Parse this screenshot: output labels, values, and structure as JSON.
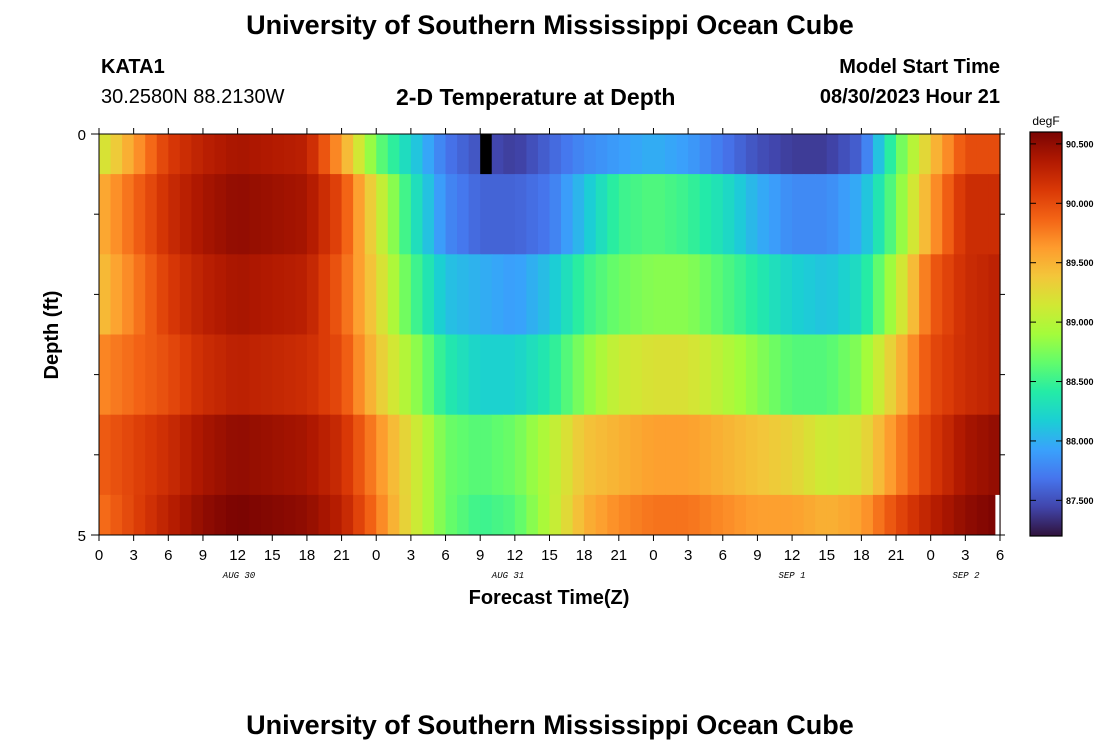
{
  "header": {
    "title": "University of Southern Mississippi Ocean Cube",
    "station_id": "KATA1",
    "station_coords": "30.2580N  88.2130W",
    "chart_title": "2-D Temperature at Depth",
    "model_start_label": "Model Start Time",
    "model_start_value": "08/30/2023 Hour 21"
  },
  "footer": {
    "title": "University of Southern Mississippi Ocean Cube"
  },
  "colors": {
    "colormap": [
      "#30123b",
      "#4145ab",
      "#4675ed",
      "#39a2fc",
      "#1bcfd4",
      "#24eca6",
      "#61fc6c",
      "#a4fc3b",
      "#d1e834",
      "#f3c63a",
      "#fe9b2d",
      "#f36315",
      "#d93806",
      "#b11901",
      "#7a0402"
    ]
  },
  "chart_data": {
    "type": "heatmap",
    "title": "2-D Temperature at Depth",
    "xlabel": "Forecast Time(Z)",
    "ylabel": "Depth (ft)",
    "y_ticks": [
      "0",
      "5"
    ],
    "y_range": [
      0,
      5
    ],
    "x_tick_labels": [
      "0",
      "3",
      "6",
      "9",
      "12",
      "15",
      "18",
      "21",
      "0",
      "3",
      "6",
      "9",
      "12",
      "15",
      "18",
      "21",
      "0",
      "3",
      "6",
      "9",
      "12",
      "15",
      "18",
      "21",
      "0",
      "3",
      "6"
    ],
    "date_labels": [
      "AUG 30",
      "AUG 31",
      "SEP 1",
      "SEP 2"
    ],
    "colorbar": {
      "unit": "degF",
      "min": 87.2,
      "max": 90.6,
      "tick_labels": [
        "90.500",
        "90.000",
        "89.500",
        "89.000",
        "88.500",
        "88.000",
        "87.500"
      ],
      "tick_values": [
        90.5,
        90.0,
        89.5,
        89.0,
        88.5,
        88.0,
        87.5
      ]
    },
    "layers": [
      "0-0.5 ft",
      "0.5-1.5 ft",
      "1.5-2.5 ft",
      "2.5-3.5 ft",
      "3.5-4.5 ft",
      "4.5-5 ft"
    ],
    "time_hours": [
      0,
      6,
      9,
      12,
      18,
      21,
      24,
      27,
      30,
      33,
      36,
      39,
      42,
      45,
      48,
      51,
      54,
      57,
      60,
      63,
      66,
      69,
      72,
      75,
      78
    ],
    "values": [
      [
        89.1,
        90.1,
        90.3,
        90.4,
        90.3,
        89.6,
        88.7,
        88.2,
        87.7,
        87.5,
        87.4,
        87.6,
        87.8,
        87.9,
        88.0,
        87.9,
        87.7,
        87.5,
        87.4,
        87.4,
        87.6,
        88.6,
        89.4,
        90.0,
        90.0
      ],
      [
        89.5,
        90.2,
        90.4,
        90.5,
        90.4,
        90.0,
        89.2,
        88.4,
        87.8,
        87.6,
        87.6,
        87.7,
        88.1,
        88.5,
        88.6,
        88.5,
        88.3,
        88.0,
        87.8,
        87.8,
        88.0,
        88.7,
        89.6,
        90.2,
        90.2
      ],
      [
        89.4,
        90.1,
        90.3,
        90.4,
        90.3,
        89.9,
        89.3,
        88.6,
        88.1,
        88.0,
        87.9,
        88.1,
        88.5,
        88.7,
        88.8,
        88.8,
        88.6,
        88.4,
        88.2,
        88.1,
        88.3,
        89.0,
        89.9,
        90.2,
        90.3
      ],
      [
        89.7,
        90.0,
        90.2,
        90.3,
        90.2,
        90.0,
        89.4,
        88.9,
        88.4,
        88.2,
        88.2,
        88.4,
        88.8,
        89.1,
        89.2,
        89.2,
        89.0,
        88.8,
        88.6,
        88.6,
        88.8,
        89.4,
        90.0,
        90.2,
        90.3
      ],
      [
        89.9,
        90.2,
        90.4,
        90.5,
        90.4,
        90.2,
        89.7,
        89.2,
        88.7,
        88.6,
        88.7,
        89.0,
        89.4,
        89.5,
        89.6,
        89.6,
        89.5,
        89.4,
        89.3,
        89.1,
        89.2,
        89.7,
        90.1,
        90.4,
        90.5
      ],
      [
        89.8,
        90.3,
        90.5,
        90.6,
        90.5,
        90.3,
        89.8,
        89.2,
        88.7,
        88.5,
        88.6,
        89.0,
        89.5,
        89.7,
        89.8,
        89.8,
        89.7,
        89.6,
        89.6,
        89.5,
        89.6,
        90.0,
        90.3,
        90.5,
        90.6
      ]
    ]
  }
}
